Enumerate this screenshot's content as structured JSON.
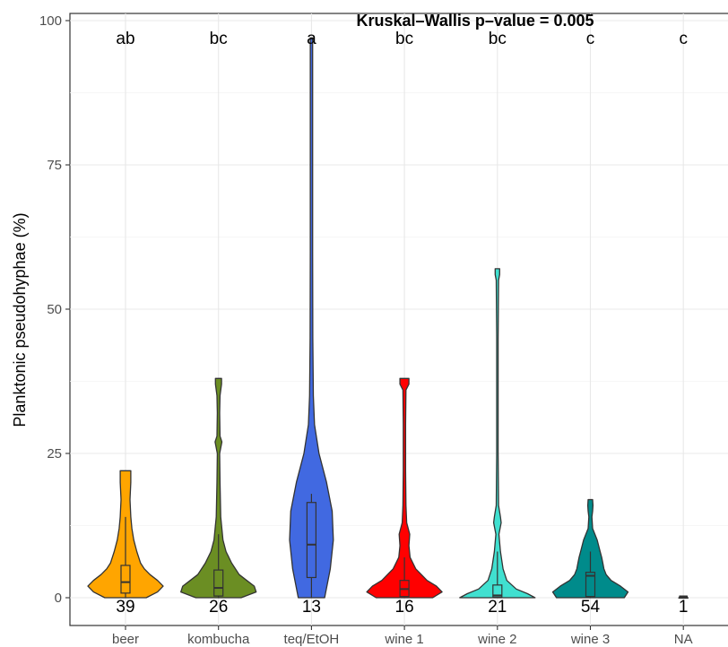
{
  "chart_data": {
    "type": "violin",
    "title": "Kruskal–Wallis p–value = 0.005",
    "ylabel": "Planktonic pseudohyphae (%)",
    "xlabel": "",
    "ylim": [
      0,
      100
    ],
    "y_ticks": [
      0,
      25,
      50,
      75,
      100
    ],
    "grid": true,
    "categories": [
      "beer",
      "kombucha",
      "teq/EtOH",
      "wine 1",
      "wine 2",
      "wine 3",
      "NA"
    ],
    "significance_letters": [
      "ab",
      "bc",
      "a",
      "bc",
      "bc",
      "c",
      "c"
    ],
    "counts": [
      "39",
      "26",
      "13",
      "16",
      "21",
      "54",
      "1"
    ],
    "colors": [
      "#FFA500",
      "#6B8E23",
      "#4169E1",
      "#FF0000",
      "#40E0D0",
      "#008B8B",
      "#333333"
    ],
    "box": [
      {
        "q1": 0.8,
        "median": 2.7,
        "q3": 5.6,
        "whisker_high": 14
      },
      {
        "q1": 0.3,
        "median": 1.7,
        "q3": 4.8,
        "whisker_high": 11
      },
      {
        "q1": 3.5,
        "median": 9.2,
        "q3": 16.5,
        "whisker_high": 18
      },
      {
        "q1": 0.2,
        "median": 1.5,
        "q3": 3.0,
        "whisker_high": 7
      },
      {
        "q1": 0.1,
        "median": 0.4,
        "q3": 2.2,
        "whisker_high": 8
      },
      {
        "q1": 0.2,
        "median": 3.8,
        "q3": 4.4,
        "whisker_high": 8
      },
      {
        "q1": 0.0,
        "median": 0.0,
        "q3": 0.0,
        "whisker_high": 0
      }
    ],
    "violins": [
      {
        "max": 22,
        "profile": [
          [
            0,
            0.55
          ],
          [
            1,
            0.85
          ],
          [
            2,
            1.0
          ],
          [
            3,
            0.85
          ],
          [
            4,
            0.65
          ],
          [
            5,
            0.5
          ],
          [
            6,
            0.4
          ],
          [
            8,
            0.3
          ],
          [
            10,
            0.22
          ],
          [
            12,
            0.17
          ],
          [
            14,
            0.14
          ],
          [
            17,
            0.12
          ],
          [
            20,
            0.14
          ],
          [
            22,
            0.14
          ]
        ]
      },
      {
        "max": 38,
        "profile": [
          [
            0,
            0.6
          ],
          [
            1,
            1.0
          ],
          [
            2,
            0.95
          ],
          [
            3,
            0.75
          ],
          [
            4,
            0.55
          ],
          [
            6,
            0.35
          ],
          [
            8,
            0.2
          ],
          [
            10,
            0.12
          ],
          [
            14,
            0.06
          ],
          [
            20,
            0.04
          ],
          [
            25,
            0.03
          ],
          [
            27,
            0.09
          ],
          [
            28,
            0.04
          ],
          [
            32,
            0.03
          ],
          [
            35,
            0.04
          ],
          [
            37,
            0.08
          ],
          [
            38,
            0.08
          ]
        ]
      },
      {
        "max": 97,
        "profile": [
          [
            0,
            0.35
          ],
          [
            5,
            0.5
          ],
          [
            10,
            0.58
          ],
          [
            15,
            0.55
          ],
          [
            20,
            0.4
          ],
          [
            25,
            0.2
          ],
          [
            30,
            0.08
          ],
          [
            35,
            0.05
          ],
          [
            45,
            0.035
          ],
          [
            60,
            0.03
          ],
          [
            80,
            0.03
          ],
          [
            90,
            0.03
          ],
          [
            96,
            0.03
          ],
          [
            97,
            0.03
          ]
        ]
      },
      {
        "max": 38,
        "profile": [
          [
            0,
            0.75
          ],
          [
            1,
            1.0
          ],
          [
            2,
            0.85
          ],
          [
            3,
            0.6
          ],
          [
            4,
            0.45
          ],
          [
            5,
            0.3
          ],
          [
            7,
            0.15
          ],
          [
            9,
            0.12
          ],
          [
            11,
            0.14
          ],
          [
            13,
            0.06
          ],
          [
            16,
            0.04
          ],
          [
            22,
            0.03
          ],
          [
            30,
            0.03
          ],
          [
            36,
            0.04
          ],
          [
            37,
            0.12
          ],
          [
            38,
            0.12
          ]
        ]
      },
      {
        "max": 57,
        "profile": [
          [
            0,
            1.0
          ],
          [
            0.7,
            0.8
          ],
          [
            1.5,
            0.5
          ],
          [
            3,
            0.25
          ],
          [
            5,
            0.15
          ],
          [
            8,
            0.08
          ],
          [
            11,
            0.04
          ],
          [
            13,
            0.1
          ],
          [
            14,
            0.08
          ],
          [
            16,
            0.03
          ],
          [
            25,
            0.02
          ],
          [
            45,
            0.02
          ],
          [
            55,
            0.03
          ],
          [
            56,
            0.06
          ],
          [
            57,
            0.06
          ]
        ]
      },
      {
        "max": 17,
        "profile": [
          [
            0,
            0.9
          ],
          [
            1,
            1.0
          ],
          [
            2,
            0.8
          ],
          [
            3,
            0.55
          ],
          [
            4,
            0.42
          ],
          [
            5,
            0.36
          ],
          [
            6,
            0.33
          ],
          [
            7,
            0.3
          ],
          [
            8,
            0.26
          ],
          [
            10,
            0.18
          ],
          [
            12,
            0.06
          ],
          [
            14,
            0.04
          ],
          [
            15,
            0.06
          ],
          [
            16,
            0.07
          ],
          [
            17,
            0.06
          ]
        ]
      },
      {
        "max": 0.3,
        "profile": [
          [
            0,
            0.1
          ],
          [
            0.3,
            0.1
          ]
        ]
      }
    ]
  }
}
